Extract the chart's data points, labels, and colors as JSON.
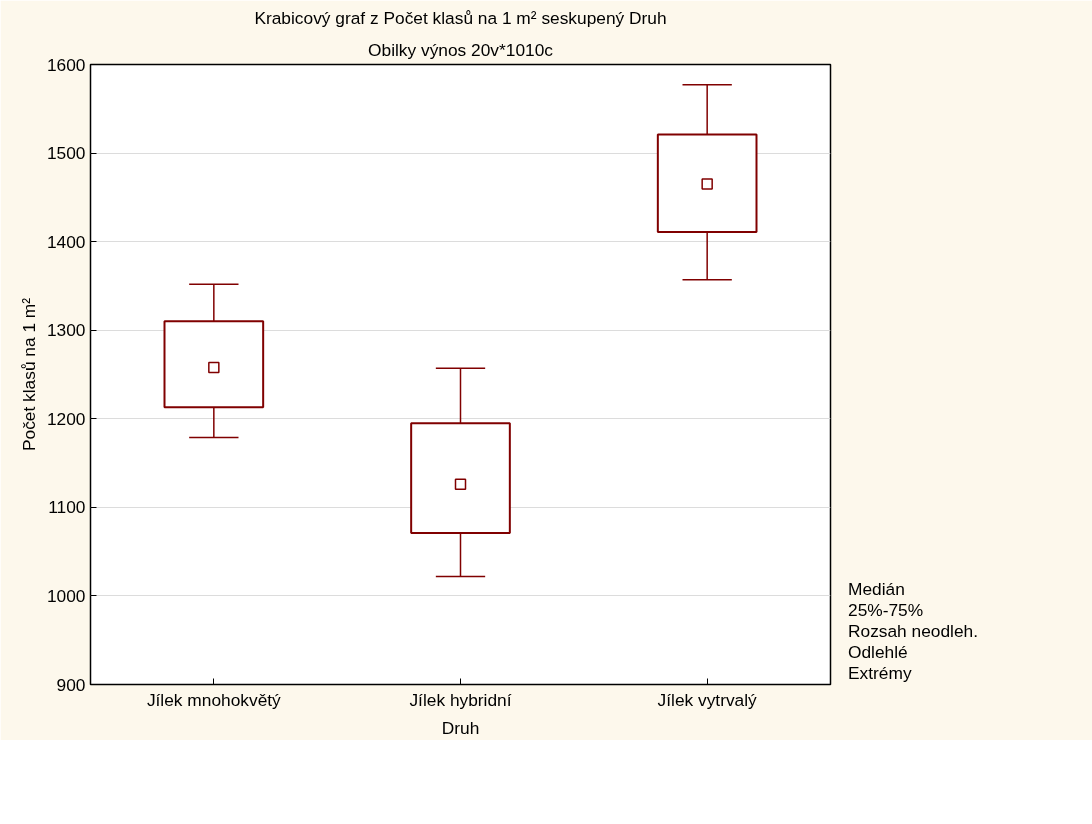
{
  "chart_data": {
    "type": "box",
    "title": "Krabicový graf z Počet klasů na 1 m² seskupený Druh",
    "subtitle": "Obilky výnos 20v*1010c",
    "xlabel": "Druh",
    "ylabel": "Počet klasů na 1 m²",
    "categories": [
      "Jílek mnohokvětý",
      "Jílek hybridní",
      "Jílek vytrvalý"
    ],
    "boxes": [
      {
        "low": 1179,
        "q1": 1213,
        "median": 1258,
        "q3": 1310,
        "high": 1352
      },
      {
        "low": 1022,
        "q1": 1071,
        "median": 1126,
        "q3": 1195,
        "high": 1257
      },
      {
        "low": 1357,
        "q1": 1411,
        "median": 1465,
        "q3": 1521,
        "high": 1577
      }
    ],
    "color": "#800000",
    "ylim": [
      900,
      1600
    ],
    "yticks": [
      900,
      1000,
      1100,
      1200,
      1300,
      1400,
      1500,
      1600
    ],
    "grid": "y",
    "annotations": [
      "Medián",
      "25%-75%",
      "Rozsah neodleh.",
      "Odlehlé",
      "Extrémy"
    ]
  }
}
